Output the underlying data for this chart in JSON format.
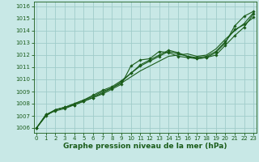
{
  "title": "Graphe pression niveau de la mer (hPa)",
  "bg_color": "#c8e8e6",
  "grid_color": "#a0ccca",
  "line_color": "#1a5c1a",
  "x_ticks": [
    0,
    1,
    2,
    3,
    4,
    5,
    6,
    7,
    8,
    9,
    10,
    11,
    12,
    13,
    14,
    15,
    16,
    17,
    18,
    19,
    20,
    21,
    22,
    23
  ],
  "y_ticks": [
    1006,
    1007,
    1008,
    1009,
    1010,
    1011,
    1012,
    1013,
    1014,
    1015,
    1016
  ],
  "xlim": [
    -0.3,
    23.3
  ],
  "ylim": [
    1005.6,
    1016.4
  ],
  "series": [
    {
      "y": [
        1006.0,
        1007.1,
        1007.5,
        1007.7,
        1007.9,
        1008.2,
        1008.5,
        1008.8,
        1009.2,
        1009.6,
        1011.1,
        1011.6,
        1011.7,
        1012.3,
        1012.2,
        1011.9,
        1011.8,
        1011.7,
        1011.8,
        1012.2,
        1013.0,
        1014.4,
        1015.2,
        1015.6
      ],
      "marker": true
    },
    {
      "y": [
        1006.0,
        1007.0,
        1007.5,
        1007.7,
        1008.0,
        1008.3,
        1008.6,
        1009.0,
        1009.3,
        1009.7,
        1010.2,
        1010.7,
        1011.1,
        1011.5,
        1011.9,
        1012.0,
        1012.1,
        1011.9,
        1012.0,
        1012.5,
        1013.3,
        1014.0,
        1014.6,
        1015.5
      ],
      "marker": false
    },
    {
      "y": [
        1006.0,
        1007.0,
        1007.5,
        1007.7,
        1008.0,
        1008.3,
        1008.7,
        1009.1,
        1009.4,
        1009.9,
        1010.5,
        1011.2,
        1011.6,
        1012.0,
        1012.4,
        1012.2,
        1011.9,
        1011.7,
        1011.8,
        1012.0,
        1012.8,
        1013.6,
        1014.3,
        1015.4
      ],
      "marker": true
    },
    {
      "y": [
        1006.0,
        1007.1,
        1007.4,
        1007.6,
        1007.9,
        1008.2,
        1008.5,
        1008.9,
        1009.3,
        1009.8,
        1010.5,
        1011.1,
        1011.5,
        1011.9,
        1012.3,
        1012.1,
        1011.9,
        1011.8,
        1011.9,
        1012.3,
        1013.1,
        1014.1,
        1014.5,
        1015.1
      ],
      "marker": true
    }
  ],
  "title_fontsize": 6.5,
  "tick_fontsize": 5.0
}
